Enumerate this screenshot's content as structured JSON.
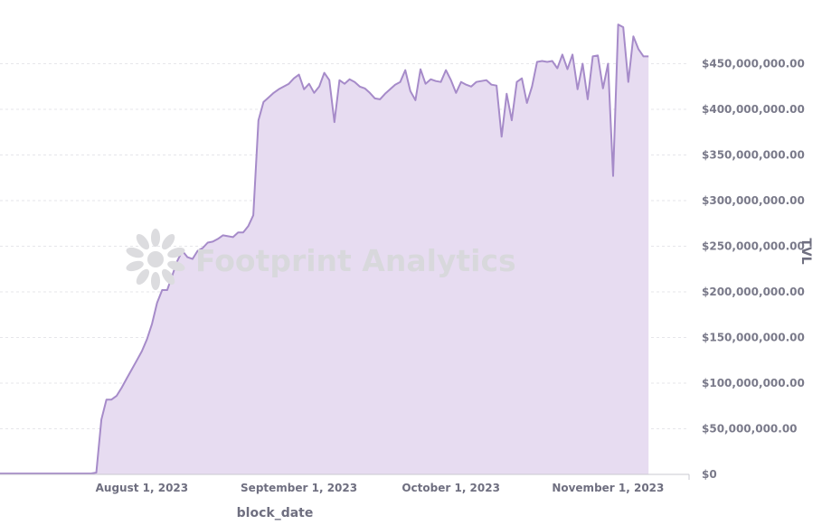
{
  "watermark": {
    "text": "Footprint Analytics"
  },
  "chart_data": {
    "type": "area",
    "xlabel": "block_date",
    "ylabel": "TVL",
    "xlim": [
      "2023-07-04",
      "2023-11-17"
    ],
    "ylim": [
      0,
      500000000
    ],
    "x_ticks": [
      {
        "date": "2023-08-01",
        "label": "August 1, 2023"
      },
      {
        "date": "2023-09-01",
        "label": "September 1, 2023"
      },
      {
        "date": "2023-10-01",
        "label": "October 1, 2023"
      },
      {
        "date": "2023-11-01",
        "label": "November 1, 2023"
      }
    ],
    "y_ticks": [
      {
        "value": 0,
        "label": "$0"
      },
      {
        "value": 50000000,
        "label": "$50,000,000.00"
      },
      {
        "value": 100000000,
        "label": "$100,000,000.00"
      },
      {
        "value": 150000000,
        "label": "$150,000,000.00"
      },
      {
        "value": 200000000,
        "label": "$200,000,000.00"
      },
      {
        "value": 250000000,
        "label": "$250,000,000.00"
      },
      {
        "value": 300000000,
        "label": "$300,000,000.00"
      },
      {
        "value": 350000000,
        "label": "$350,000,000.00"
      },
      {
        "value": 400000000,
        "label": "$400,000,000.00"
      },
      {
        "value": 450000000,
        "label": "$450,000,000.00"
      }
    ],
    "grid": true,
    "colors": {
      "line": "#a68bc9",
      "fill": "#e7dcf1",
      "axis": "#c9c9d0"
    },
    "series": [
      {
        "points": [
          [
            "2023-07-04",
            1000000
          ],
          [
            "2023-07-22",
            1000000
          ],
          [
            "2023-07-23",
            2000000
          ],
          [
            "2023-07-24",
            60000000
          ],
          [
            "2023-07-25",
            82000000
          ],
          [
            "2023-07-26",
            82000000
          ],
          [
            "2023-07-27",
            86000000
          ],
          [
            "2023-07-28",
            95000000
          ],
          [
            "2023-07-29",
            105000000
          ],
          [
            "2023-07-30",
            115000000
          ],
          [
            "2023-07-31",
            125000000
          ],
          [
            "2023-08-01",
            135000000
          ],
          [
            "2023-08-02",
            148000000
          ],
          [
            "2023-08-03",
            165000000
          ],
          [
            "2023-08-04",
            188000000
          ],
          [
            "2023-08-05",
            202000000
          ],
          [
            "2023-08-06",
            202000000
          ],
          [
            "2023-08-07",
            218000000
          ],
          [
            "2023-08-08",
            234000000
          ],
          [
            "2023-08-09",
            245000000
          ],
          [
            "2023-08-10",
            238000000
          ],
          [
            "2023-08-11",
            236000000
          ],
          [
            "2023-08-12",
            245000000
          ],
          [
            "2023-08-13",
            248000000
          ],
          [
            "2023-08-14",
            254000000
          ],
          [
            "2023-08-15",
            255000000
          ],
          [
            "2023-08-16",
            258000000
          ],
          [
            "2023-08-17",
            262000000
          ],
          [
            "2023-08-18",
            261000000
          ],
          [
            "2023-08-19",
            260000000
          ],
          [
            "2023-08-20",
            265000000
          ],
          [
            "2023-08-21",
            265000000
          ],
          [
            "2023-08-22",
            272000000
          ],
          [
            "2023-08-23",
            284000000
          ],
          [
            "2023-08-24",
            388000000
          ],
          [
            "2023-08-25",
            408000000
          ],
          [
            "2023-08-26",
            413000000
          ],
          [
            "2023-08-27",
            418000000
          ],
          [
            "2023-08-28",
            422000000
          ],
          [
            "2023-08-29",
            425000000
          ],
          [
            "2023-08-30",
            428000000
          ],
          [
            "2023-08-31",
            434000000
          ],
          [
            "2023-09-01",
            438000000
          ],
          [
            "2023-09-02",
            422000000
          ],
          [
            "2023-09-03",
            428000000
          ],
          [
            "2023-09-04",
            418000000
          ],
          [
            "2023-09-05",
            425000000
          ],
          [
            "2023-09-06",
            440000000
          ],
          [
            "2023-09-07",
            432000000
          ],
          [
            "2023-09-08",
            386000000
          ],
          [
            "2023-09-09",
            432000000
          ],
          [
            "2023-09-10",
            428000000
          ],
          [
            "2023-09-11",
            433000000
          ],
          [
            "2023-09-12",
            430000000
          ],
          [
            "2023-09-13",
            425000000
          ],
          [
            "2023-09-14",
            423000000
          ],
          [
            "2023-09-15",
            418000000
          ],
          [
            "2023-09-16",
            412000000
          ],
          [
            "2023-09-17",
            411000000
          ],
          [
            "2023-09-18",
            417000000
          ],
          [
            "2023-09-19",
            422000000
          ],
          [
            "2023-09-20",
            427000000
          ],
          [
            "2023-09-21",
            430000000
          ],
          [
            "2023-09-22",
            443000000
          ],
          [
            "2023-09-23",
            420000000
          ],
          [
            "2023-09-24",
            410000000
          ],
          [
            "2023-09-25",
            444000000
          ],
          [
            "2023-09-26",
            428000000
          ],
          [
            "2023-09-27",
            433000000
          ],
          [
            "2023-09-28",
            431000000
          ],
          [
            "2023-09-29",
            430000000
          ],
          [
            "2023-09-30",
            443000000
          ],
          [
            "2023-10-01",
            432000000
          ],
          [
            "2023-10-02",
            418000000
          ],
          [
            "2023-10-03",
            430000000
          ],
          [
            "2023-10-04",
            427000000
          ],
          [
            "2023-10-05",
            425000000
          ],
          [
            "2023-10-06",
            430000000
          ],
          [
            "2023-10-07",
            431000000
          ],
          [
            "2023-10-08",
            432000000
          ],
          [
            "2023-10-09",
            427000000
          ],
          [
            "2023-10-10",
            426000000
          ],
          [
            "2023-10-11",
            370000000
          ],
          [
            "2023-10-12",
            417000000
          ],
          [
            "2023-10-13",
            388000000
          ],
          [
            "2023-10-14",
            430000000
          ],
          [
            "2023-10-15",
            434000000
          ],
          [
            "2023-10-16",
            407000000
          ],
          [
            "2023-10-17",
            425000000
          ],
          [
            "2023-10-18",
            452000000
          ],
          [
            "2023-10-19",
            453000000
          ],
          [
            "2023-10-20",
            452000000
          ],
          [
            "2023-10-21",
            453000000
          ],
          [
            "2023-10-22",
            445000000
          ],
          [
            "2023-10-23",
            460000000
          ],
          [
            "2023-10-24",
            444000000
          ],
          [
            "2023-10-25",
            460000000
          ],
          [
            "2023-10-26",
            422000000
          ],
          [
            "2023-10-27",
            450000000
          ],
          [
            "2023-10-28",
            411000000
          ],
          [
            "2023-10-29",
            458000000
          ],
          [
            "2023-10-30",
            459000000
          ],
          [
            "2023-10-31",
            423000000
          ],
          [
            "2023-11-01",
            450000000
          ],
          [
            "2023-11-02",
            327000000
          ],
          [
            "2023-11-03",
            493000000
          ],
          [
            "2023-11-04",
            490000000
          ],
          [
            "2023-11-05",
            430000000
          ],
          [
            "2023-11-06",
            480000000
          ],
          [
            "2023-11-07",
            466000000
          ],
          [
            "2023-11-08",
            458000000
          ],
          [
            "2023-11-09",
            458000000
          ]
        ]
      }
    ]
  }
}
